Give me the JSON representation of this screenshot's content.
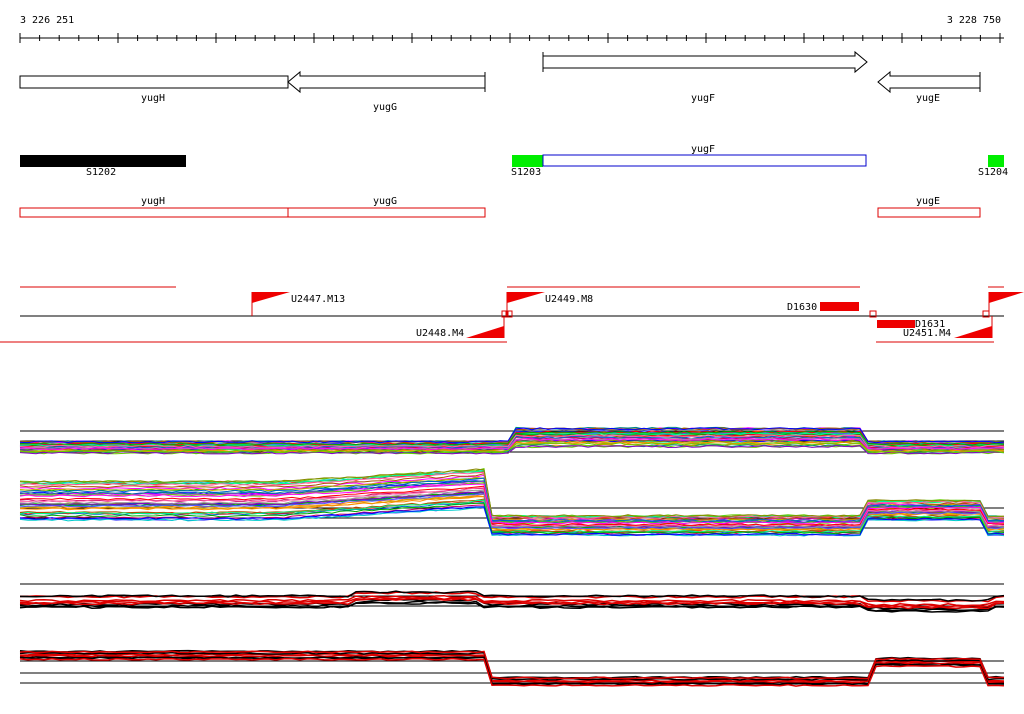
{
  "coordinates": {
    "start": "3 226 251",
    "end": "3 228 750"
  },
  "genes": [
    {
      "name": "yugH",
      "strand": "-"
    },
    {
      "name": "yugG",
      "strand": "-"
    },
    {
      "name": "yugF",
      "strand": "+"
    },
    {
      "name": "yugE",
      "strand": "-"
    }
  ],
  "segments": [
    {
      "name": "S1202",
      "color": "#000000"
    },
    {
      "name": "S1203",
      "color": "#00ee00"
    },
    {
      "name": "S1204",
      "color": "#00ee00"
    }
  ],
  "transcript_labels": [
    "yugF"
  ],
  "cds_boxes": [
    "yugH",
    "yugG",
    "yugE"
  ],
  "upshifts": [
    "U2447.M13",
    "U2448.M4",
    "U2449.M8",
    "U2451.M4"
  ],
  "downshifts": [
    "D1630",
    "D1631"
  ],
  "colors": {
    "segment_black": "#000000",
    "segment_green": "#00ee00",
    "transcript_blue": "#0000cc",
    "feature_red": "#dd0000"
  },
  "expression_panels": 4
}
